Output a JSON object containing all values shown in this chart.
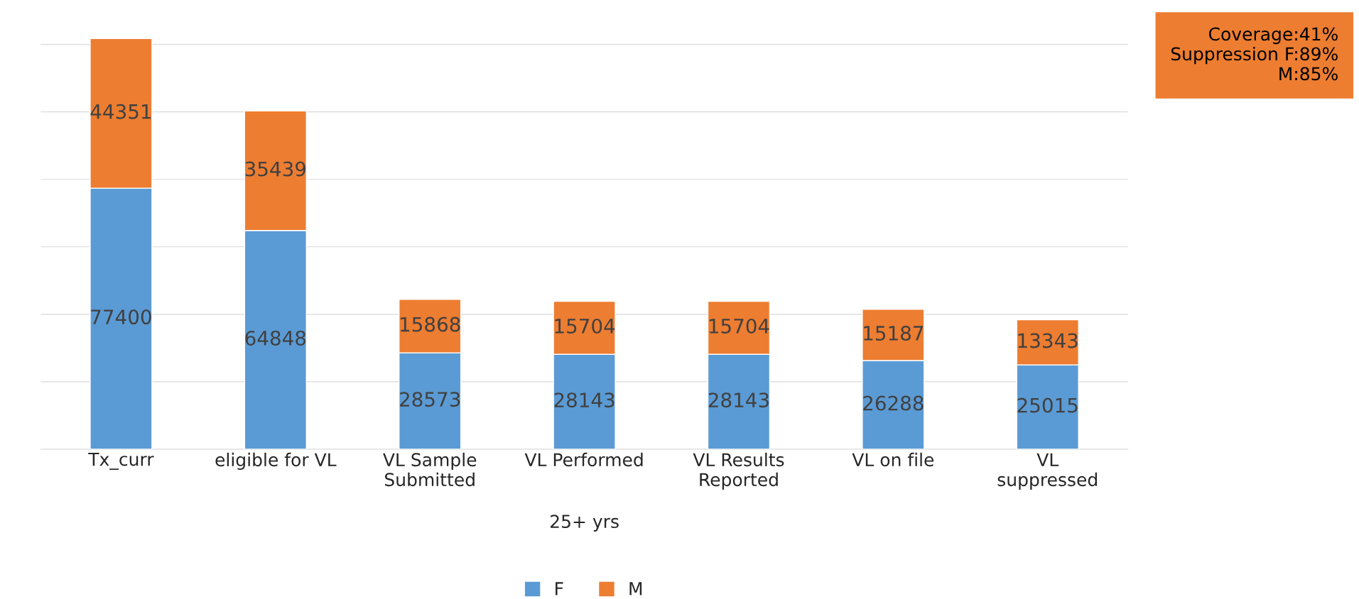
{
  "chart_data": {
    "type": "bar",
    "stacked": true,
    "xlabel": "25+ yrs",
    "categories": [
      "Tx_curr",
      "eligible for VL",
      "VL Sample\nSubmitted",
      "VL Performed",
      "VL Results\nReported",
      "VL on file",
      "VL\nsuppressed"
    ],
    "series": [
      {
        "name": "F",
        "color": "#5b9bd5",
        "values": [
          77400,
          64848,
          28573,
          28143,
          28143,
          26288,
          25015
        ]
      },
      {
        "name": "M",
        "color": "#ed7d31",
        "values": [
          44351,
          35439,
          15868,
          15704,
          15704,
          15187,
          13343
        ]
      }
    ],
    "data_labels": true,
    "grid": "y",
    "tick_labels": "x",
    "legend": "bottom",
    "annotations": [
      "Coverage:41%",
      "Suppression F:89%",
      "M:85%"
    ]
  }
}
